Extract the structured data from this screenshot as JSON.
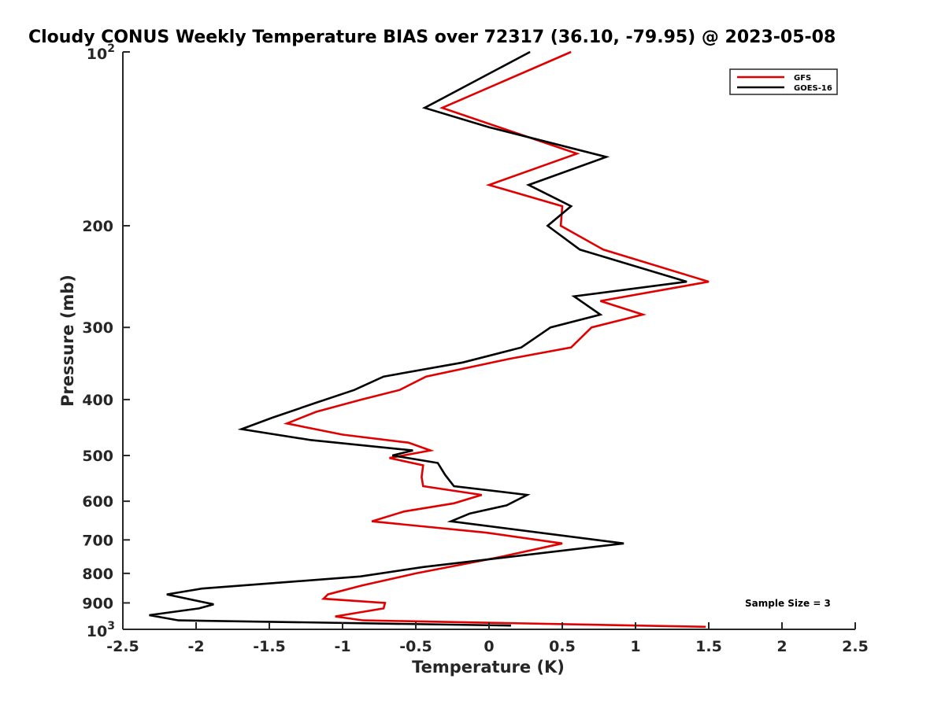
{
  "chart_data": {
    "type": "line",
    "title": "Cloudy CONUS Weekly Temperature BIAS over 72317 (36.10, -79.95) @ 2023-05-08",
    "xlabel": "Temperature (K)",
    "ylabel": "Pressure (mb)",
    "xlim": [
      -2.5,
      2.5
    ],
    "ylim": [
      100,
      1000
    ],
    "y_scale": "log",
    "y_reversed": true,
    "grid": false,
    "legend_position": "top-right",
    "x_ticks": [
      "-2.5",
      "-2",
      "-1.5",
      "-1",
      "-0.5",
      "0",
      "0.5",
      "1",
      "1.5",
      "2",
      "2.5"
    ],
    "x_tick_values": [
      -2.5,
      -2,
      -1.5,
      -1,
      -0.5,
      0,
      0.5,
      1,
      1.5,
      2,
      2.5
    ],
    "y_ticks": [
      {
        "value": 200,
        "label": "200"
      },
      {
        "value": 300,
        "label": "300"
      },
      {
        "value": 400,
        "label": "400"
      },
      {
        "value": 500,
        "label": "500"
      },
      {
        "value": 600,
        "label": "600"
      },
      {
        "value": 700,
        "label": "700"
      },
      {
        "value": 800,
        "label": "800"
      },
      {
        "value": 900,
        "label": "900"
      }
    ],
    "y_exp_ticks": [
      {
        "value": 100,
        "base": "10",
        "exp": "2"
      },
      {
        "value": 1000,
        "base": "10",
        "exp": "3"
      }
    ],
    "series": [
      {
        "name": "GFS",
        "color": "#e00000",
        "points": [
          {
            "p": 100,
            "t": 0.56
          },
          {
            "p": 125,
            "t": -0.32
          },
          {
            "p": 150,
            "t": 0.6
          },
          {
            "p": 170,
            "t": 0.0
          },
          {
            "p": 185,
            "t": 0.5
          },
          {
            "p": 200,
            "t": 0.49
          },
          {
            "p": 220,
            "t": 0.78
          },
          {
            "p": 250,
            "t": 1.5
          },
          {
            "p": 270,
            "t": 0.76
          },
          {
            "p": 285,
            "t": 1.05
          },
          {
            "p": 300,
            "t": 0.7
          },
          {
            "p": 325,
            "t": 0.56
          },
          {
            "p": 340,
            "t": 0.14
          },
          {
            "p": 365,
            "t": -0.43
          },
          {
            "p": 385,
            "t": -0.61
          },
          {
            "p": 400,
            "t": -0.87
          },
          {
            "p": 420,
            "t": -1.18
          },
          {
            "p": 440,
            "t": -1.38
          },
          {
            "p": 460,
            "t": -1.0
          },
          {
            "p": 475,
            "t": -0.55
          },
          {
            "p": 490,
            "t": -0.4
          },
          {
            "p": 505,
            "t": -0.68
          },
          {
            "p": 520,
            "t": -0.45
          },
          {
            "p": 545,
            "t": -0.46
          },
          {
            "p": 565,
            "t": -0.45
          },
          {
            "p": 585,
            "t": -0.05
          },
          {
            "p": 605,
            "t": -0.24
          },
          {
            "p": 625,
            "t": -0.58
          },
          {
            "p": 650,
            "t": -0.8
          },
          {
            "p": 680,
            "t": -0.02
          },
          {
            "p": 710,
            "t": 0.5
          },
          {
            "p": 750,
            "t": 0.07
          },
          {
            "p": 800,
            "t": -0.5
          },
          {
            "p": 840,
            "t": -0.87
          },
          {
            "p": 870,
            "t": -1.1
          },
          {
            "p": 885,
            "t": -1.13
          },
          {
            "p": 900,
            "t": -0.71
          },
          {
            "p": 920,
            "t": -0.72
          },
          {
            "p": 950,
            "t": -1.05
          },
          {
            "p": 965,
            "t": -0.86
          },
          {
            "p": 990,
            "t": 1.48
          }
        ]
      },
      {
        "name": "GOES-16",
        "color": "#000000",
        "points": [
          {
            "p": 100,
            "t": 0.28
          },
          {
            "p": 125,
            "t": -0.44
          },
          {
            "p": 135,
            "t": 0.0
          },
          {
            "p": 152,
            "t": 0.8
          },
          {
            "p": 170,
            "t": 0.27
          },
          {
            "p": 185,
            "t": 0.56
          },
          {
            "p": 200,
            "t": 0.4
          },
          {
            "p": 220,
            "t": 0.62
          },
          {
            "p": 250,
            "t": 1.35
          },
          {
            "p": 265,
            "t": 0.58
          },
          {
            "p": 285,
            "t": 0.76
          },
          {
            "p": 300,
            "t": 0.42
          },
          {
            "p": 325,
            "t": 0.22
          },
          {
            "p": 345,
            "t": -0.18
          },
          {
            "p": 365,
            "t": -0.72
          },
          {
            "p": 385,
            "t": -0.92
          },
          {
            "p": 405,
            "t": -1.18
          },
          {
            "p": 430,
            "t": -1.48
          },
          {
            "p": 450,
            "t": -1.69
          },
          {
            "p": 470,
            "t": -1.22
          },
          {
            "p": 490,
            "t": -0.52
          },
          {
            "p": 500,
            "t": -0.66
          },
          {
            "p": 515,
            "t": -0.35
          },
          {
            "p": 540,
            "t": -0.3
          },
          {
            "p": 565,
            "t": -0.24
          },
          {
            "p": 585,
            "t": 0.26
          },
          {
            "p": 610,
            "t": 0.12
          },
          {
            "p": 630,
            "t": -0.13
          },
          {
            "p": 650,
            "t": -0.26
          },
          {
            "p": 710,
            "t": 0.92
          },
          {
            "p": 780,
            "t": -0.45
          },
          {
            "p": 810,
            "t": -0.88
          },
          {
            "p": 850,
            "t": -1.96
          },
          {
            "p": 870,
            "t": -2.2
          },
          {
            "p": 905,
            "t": -1.88
          },
          {
            "p": 920,
            "t": -1.98
          },
          {
            "p": 945,
            "t": -2.32
          },
          {
            "p": 965,
            "t": -2.12
          },
          {
            "p": 985,
            "t": 0.15
          }
        ]
      }
    ],
    "annotation": "Sample Size = 3"
  }
}
